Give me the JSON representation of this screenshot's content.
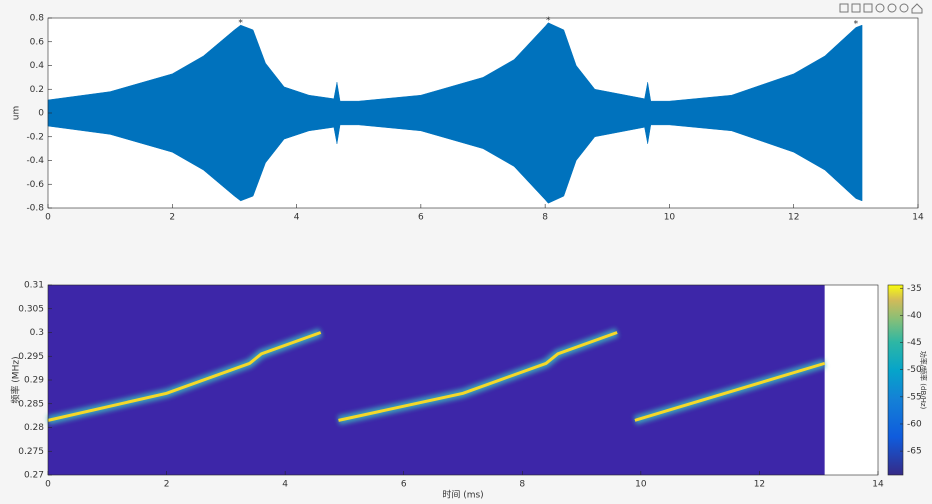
{
  "chart_data": [
    {
      "type": "area",
      "ylabel": "um",
      "xlim": [
        0,
        14
      ],
      "xticks": [
        0,
        2,
        4,
        6,
        8,
        10,
        12,
        14
      ],
      "ylim": [
        -0.8,
        0.8
      ],
      "yticks": [
        -0.8,
        -0.6,
        -0.4,
        -0.2,
        0,
        0.2,
        0.4,
        0.6,
        0.8
      ],
      "x": [
        0,
        1,
        2,
        2.5,
        3,
        3.1,
        3.3,
        3.5,
        3.8,
        4.2,
        4.6,
        4.65,
        4.7,
        5,
        6,
        7,
        7.5,
        8,
        8.05,
        8.3,
        8.5,
        8.8,
        9.6,
        9.65,
        9.7,
        10,
        11,
        12,
        12.5,
        13,
        13.1
      ],
      "series": [
        {
          "color": "#0072bd",
          "values": [
            0.11,
            0.18,
            0.33,
            0.48,
            0.7,
            0.74,
            0.7,
            0.42,
            0.22,
            0.15,
            0.12,
            0.26,
            0.1,
            0.1,
            0.15,
            0.3,
            0.45,
            0.73,
            0.76,
            0.7,
            0.4,
            0.2,
            0.12,
            0.26,
            0.1,
            0.1,
            0.15,
            0.33,
            0.48,
            0.72,
            0.74
          ]
        },
        {
          "color": "#0072bd",
          "values": [
            -0.11,
            -0.18,
            -0.33,
            -0.48,
            -0.7,
            -0.74,
            -0.7,
            -0.42,
            -0.22,
            -0.15,
            -0.12,
            -0.26,
            -0.1,
            -0.1,
            -0.15,
            -0.3,
            -0.45,
            -0.73,
            -0.76,
            -0.7,
            -0.4,
            -0.2,
            -0.12,
            -0.26,
            -0.1,
            -0.1,
            -0.15,
            -0.33,
            -0.48,
            -0.72,
            -0.74
          ]
        }
      ],
      "peaks": {
        "color": "#ff0000",
        "x": [
          3.1,
          8.05,
          13.0
        ],
        "values": [
          0.76,
          0.78,
          0.75
        ]
      }
    },
    {
      "type": "spectrogram",
      "xlabel": "时间 (ms)",
      "ylabel": "频率 (MHz)",
      "clabel": "功率/频率 (dB/Hz)",
      "xlim": [
        0,
        14
      ],
      "xticks": [
        0,
        2,
        4,
        6,
        8,
        10,
        12,
        14
      ],
      "ylim": [
        0.27,
        0.31
      ],
      "yticks": [
        0.27,
        0.275,
        0.28,
        0.285,
        0.29,
        0.295,
        0.3,
        0.305,
        0.31
      ],
      "data_xlim": [
        0,
        13.1
      ],
      "clim": [
        -69.4,
        -34.4
      ],
      "cticks": [
        -65,
        -60,
        -55,
        -50,
        -45,
        -40,
        -35
      ],
      "background": "#3d26a8",
      "color": "#f5d829",
      "halo": "#3bbcc0",
      "x": [
        0,
        2,
        3.4,
        3.6,
        4.6,
        4.75,
        4.9,
        7,
        8.4,
        8.6,
        9.6,
        9.75,
        9.9,
        13.1
      ],
      "values": [
        0.2815,
        0.2872,
        0.2935,
        0.2955,
        0.3,
        null,
        0.2815,
        0.2872,
        0.2935,
        0.2955,
        0.3,
        null,
        0.2815,
        0.2935
      ]
    }
  ]
}
